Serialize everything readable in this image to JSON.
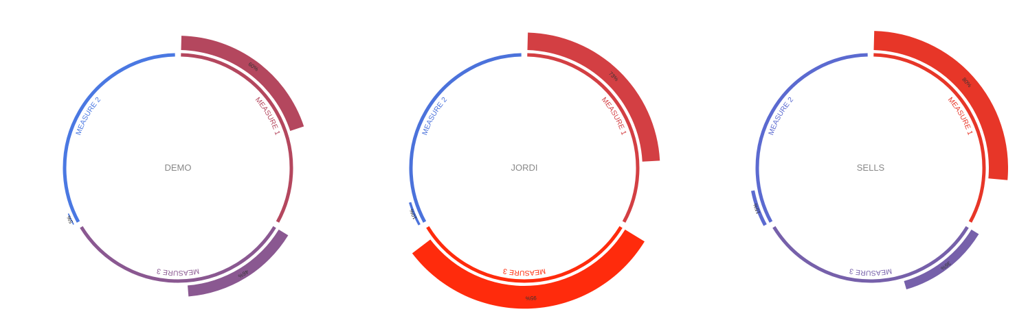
{
  "chart_data": [
    {
      "type": "radial-bar",
      "title": "DEMO",
      "segments": [
        {
          "name": "MEASURE 1",
          "value": 60,
          "label": "60%",
          "color": "#b4475e"
        },
        {
          "name": "MEASURE 3",
          "value": 46,
          "label": "46%",
          "color": "#8a5891"
        },
        {
          "name": "MEASURE 2",
          "value": 5,
          "label": "5%",
          "color": "#4a78e2"
        }
      ]
    },
    {
      "type": "radial-bar",
      "title": "JORDI",
      "segments": [
        {
          "name": "MEASURE 1",
          "value": 73,
          "label": "73%",
          "color": "#d33f43"
        },
        {
          "name": "MEASURE 3",
          "value": 95,
          "label": "95%",
          "color": "#ff2b0c"
        },
        {
          "name": "MEASURE 2",
          "value": 10,
          "label": "10%",
          "color": "#4b72db"
        }
      ]
    },
    {
      "type": "radial-bar",
      "title": "SELLS",
      "segments": [
        {
          "name": "MEASURE 1",
          "value": 80,
          "label": "80%",
          "color": "#e73628"
        },
        {
          "name": "MEASURE 3",
          "value": 36,
          "label": "36%",
          "color": "#7660aa"
        },
        {
          "name": "MEASURE 2",
          "value": 15,
          "label": "15%",
          "color": "#5b6ad0"
        }
      ]
    }
  ]
}
